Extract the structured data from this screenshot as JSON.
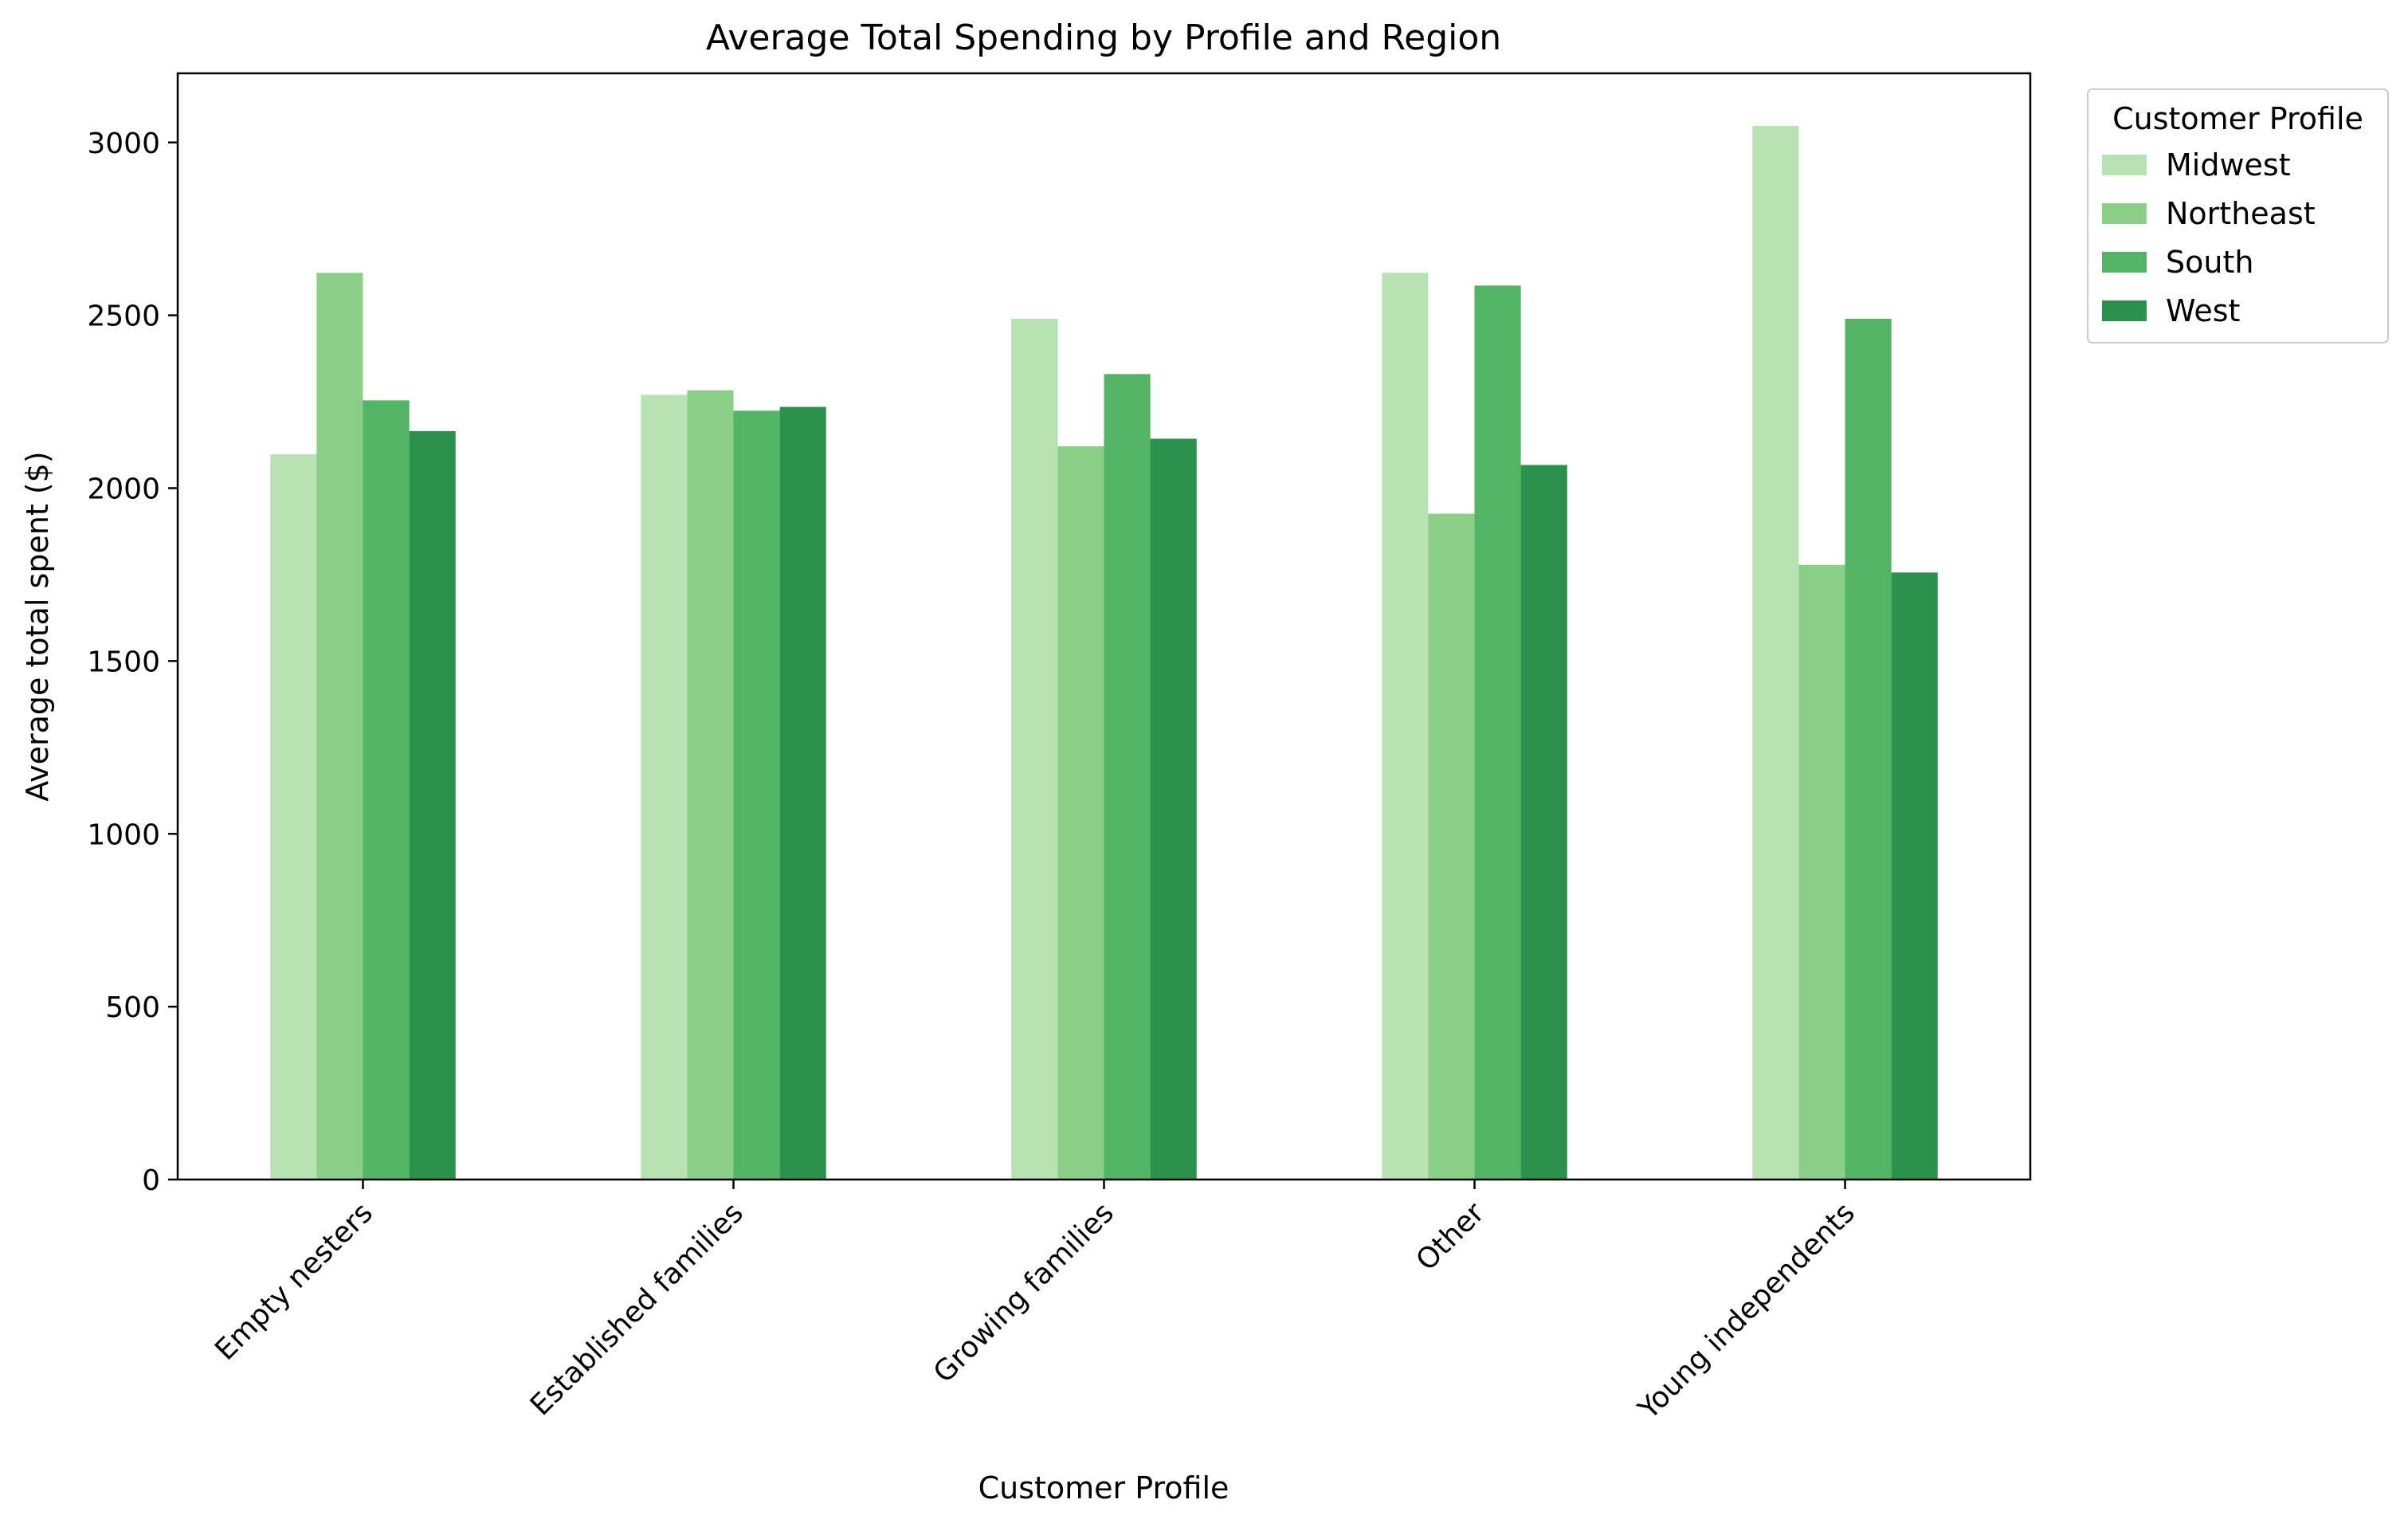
{
  "chart_data": {
    "type": "bar",
    "title": "Average Total Spending by Profile and Region",
    "xlabel": "Customer Profile",
    "ylabel": "Average total spent ($)",
    "ylim": [
      0,
      3200
    ],
    "yticks": [
      0,
      500,
      1000,
      1500,
      2000,
      2500,
      3000
    ],
    "categories": [
      "Empty nesters",
      "Established families",
      "Growing families",
      "Other",
      "Young independents"
    ],
    "series": [
      {
        "name": "Midwest",
        "color": "#b7e2b1",
        "values": [
          2098,
          2270,
          2490,
          2623,
          3048
        ]
      },
      {
        "name": "Northeast",
        "color": "#8ace88",
        "values": [
          2623,
          2283,
          2121,
          1926,
          1778
        ]
      },
      {
        "name": "South",
        "color": "#53b466",
        "values": [
          2254,
          2224,
          2330,
          2586,
          2490
        ]
      },
      {
        "name": "West",
        "color": "#2a924a",
        "values": [
          2165,
          2235,
          2143,
          2067,
          1756
        ]
      }
    ],
    "legend": {
      "title": "Customer Profile",
      "placement": "upper-right-outside"
    },
    "grid": false
  }
}
